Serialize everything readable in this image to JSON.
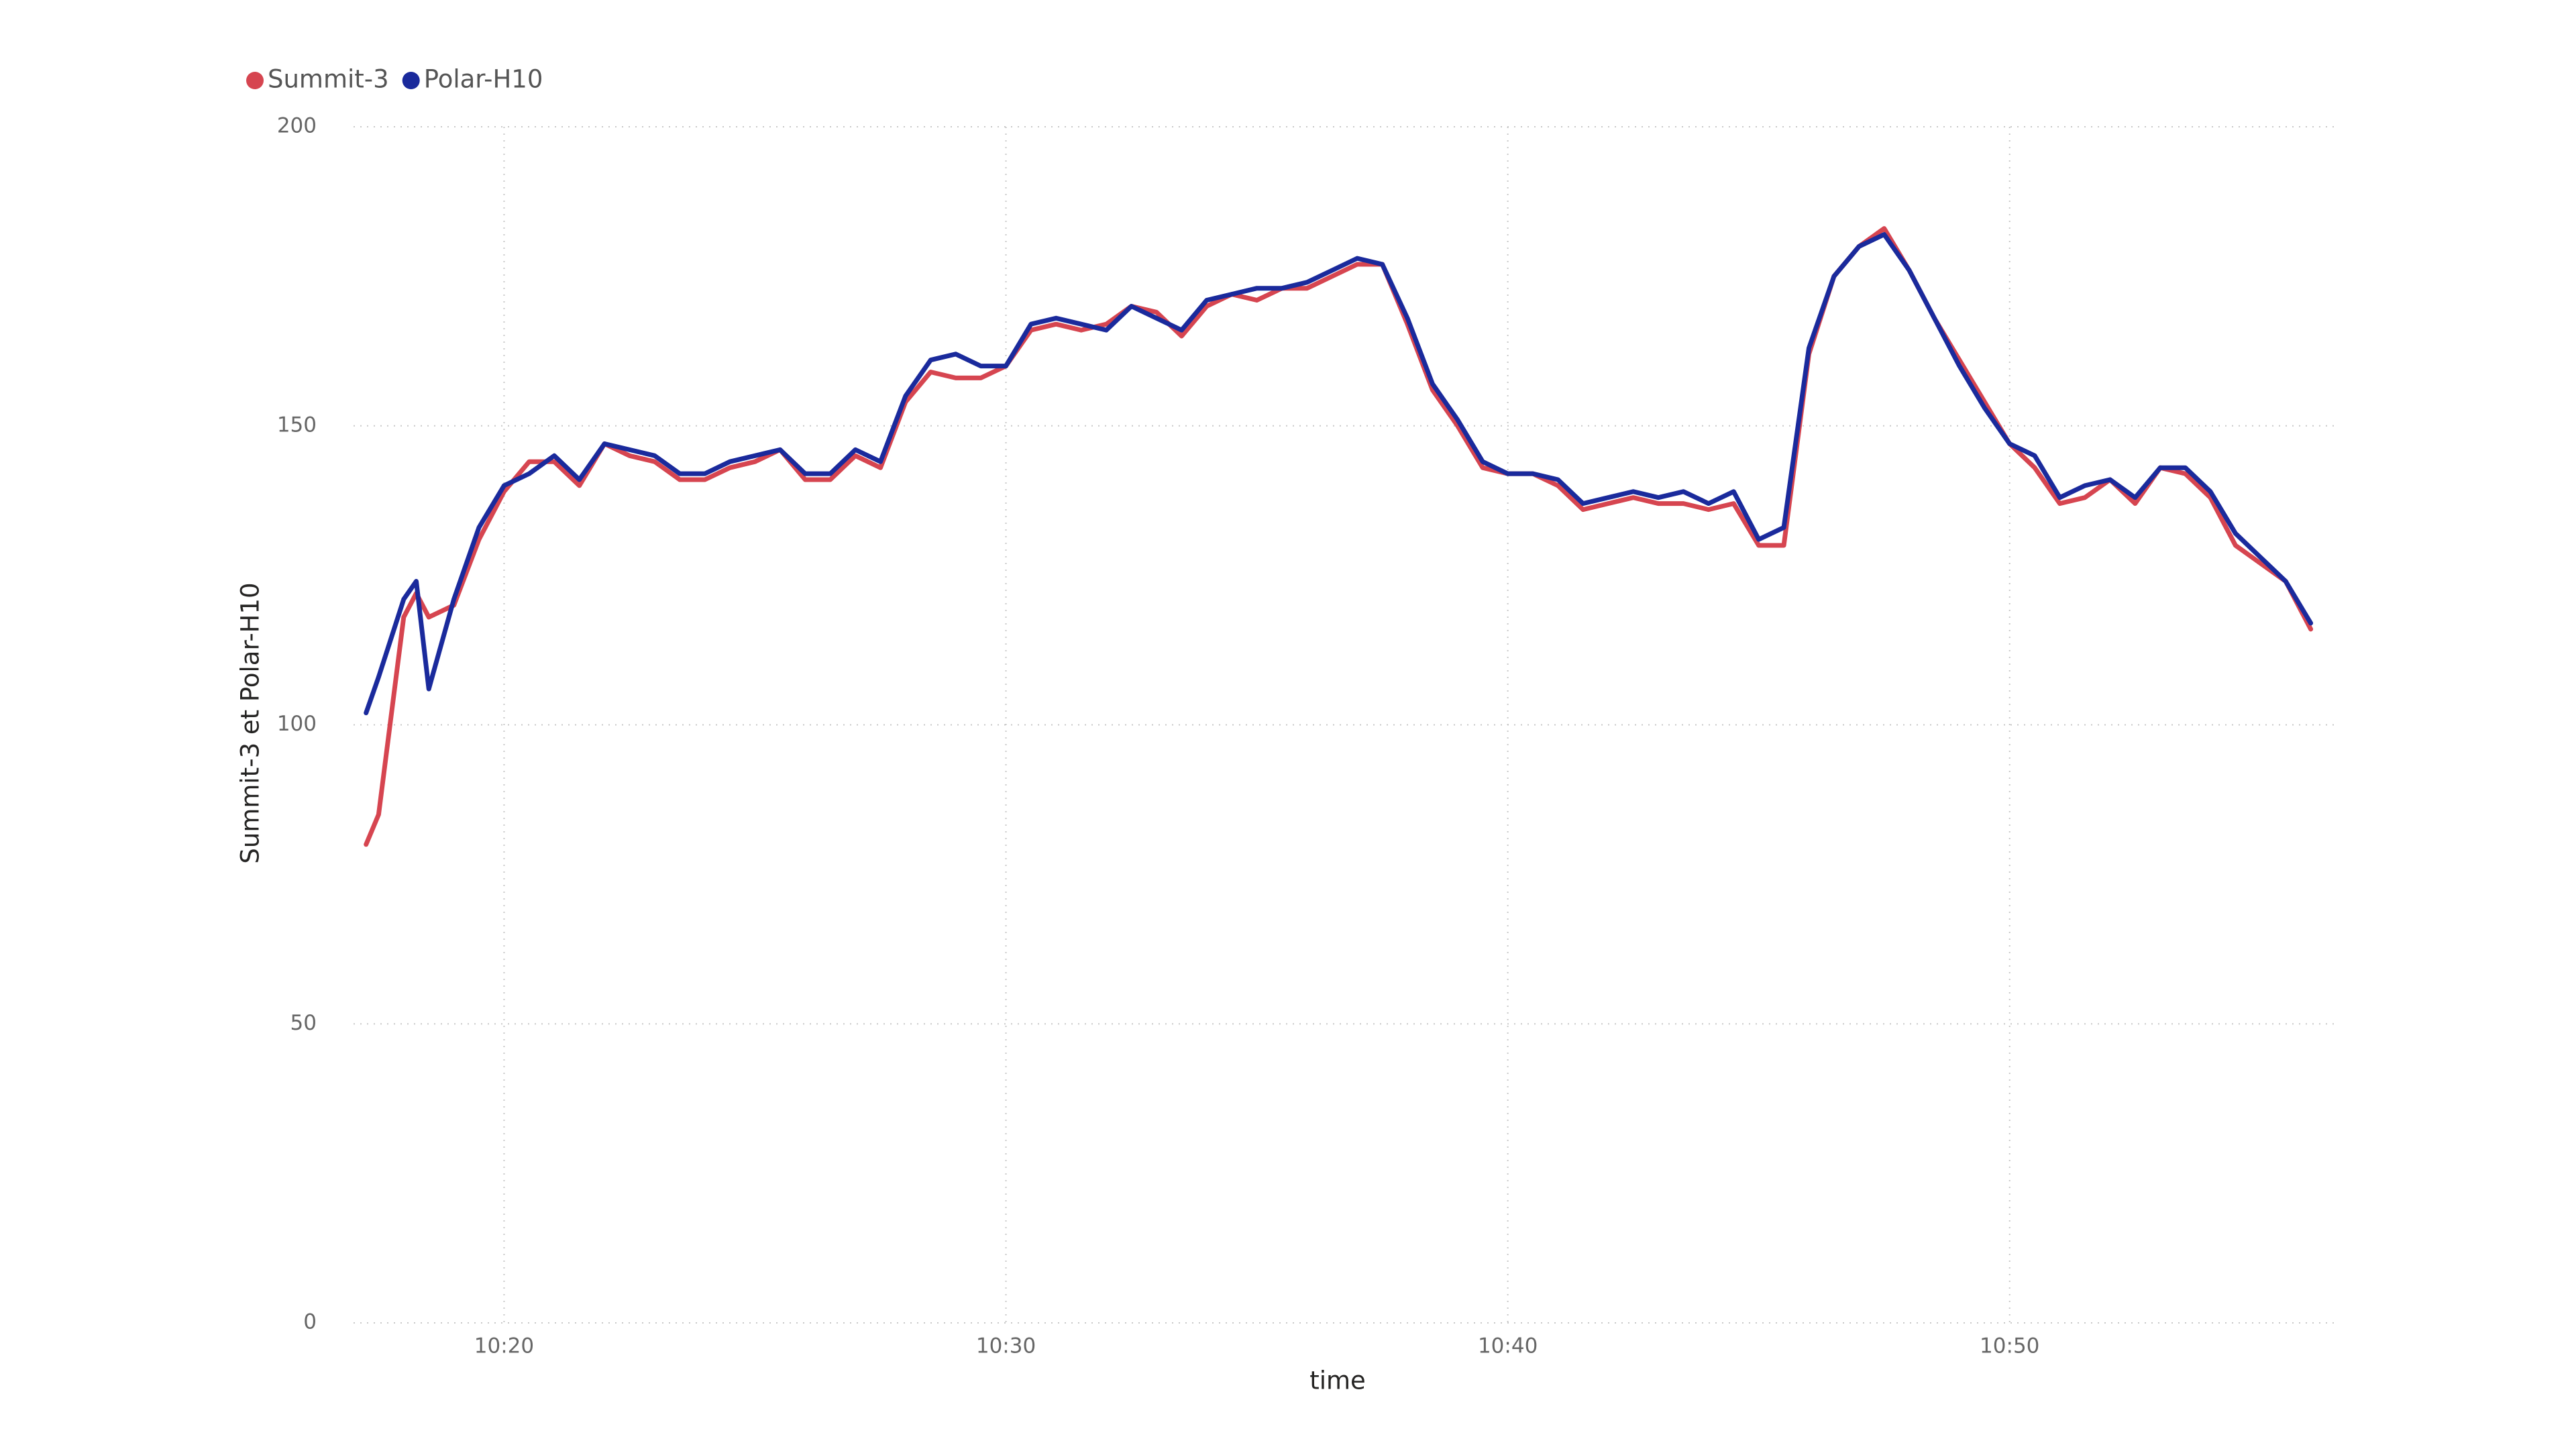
{
  "chart_data": {
    "type": "line",
    "x_label": "time",
    "y_label": "Summit-3 et Polar-H10",
    "x": [
      "10:17:15",
      "10:17:30",
      "10:18:00",
      "10:18:15",
      "10:18:30",
      "10:19:00",
      "10:19:30",
      "10:20:00",
      "10:20:30",
      "10:21:00",
      "10:21:30",
      "10:22:00",
      "10:22:30",
      "10:23:00",
      "10:23:30",
      "10:24:00",
      "10:24:30",
      "10:25:00",
      "10:25:30",
      "10:26:00",
      "10:26:30",
      "10:27:00",
      "10:27:30",
      "10:28:00",
      "10:28:30",
      "10:29:00",
      "10:29:30",
      "10:30:00",
      "10:30:30",
      "10:31:00",
      "10:31:30",
      "10:32:00",
      "10:32:30",
      "10:33:00",
      "10:33:30",
      "10:34:00",
      "10:34:30",
      "10:35:00",
      "10:35:30",
      "10:36:00",
      "10:36:30",
      "10:37:00",
      "10:37:30",
      "10:38:00",
      "10:38:30",
      "10:39:00",
      "10:39:30",
      "10:40:00",
      "10:40:30",
      "10:41:00",
      "10:41:30",
      "10:42:00",
      "10:42:30",
      "10:43:00",
      "10:43:30",
      "10:44:00",
      "10:44:30",
      "10:45:00",
      "10:45:30",
      "10:46:00",
      "10:46:30",
      "10:47:00",
      "10:47:30",
      "10:48:00",
      "10:48:30",
      "10:49:00",
      "10:49:30",
      "10:50:00",
      "10:50:30",
      "10:51:00",
      "10:51:30",
      "10:52:00",
      "10:52:30",
      "10:53:00",
      "10:53:30",
      "10:54:00",
      "10:54:30",
      "10:55:00",
      "10:55:30",
      "10:56:00"
    ],
    "series": [
      {
        "name": "Summit-3",
        "color": "#d64550",
        "values": [
          80,
          85,
          118,
          122,
          118,
          120,
          131,
          139,
          144,
          144,
          140,
          147,
          145,
          144,
          141,
          141,
          143,
          144,
          146,
          141,
          141,
          145,
          143,
          154,
          159,
          158,
          158,
          160,
          166,
          167,
          166,
          167,
          170,
          169,
          165,
          170,
          172,
          171,
          173,
          173,
          175,
          177,
          177,
          167,
          156,
          150,
          143,
          142,
          142,
          140,
          136,
          137,
          138,
          137,
          137,
          136,
          137,
          130,
          130,
          162,
          175,
          180,
          183,
          176,
          168,
          161,
          154,
          147,
          143,
          137,
          138,
          141,
          137,
          143,
          142,
          138,
          130,
          127,
          124,
          116
        ]
      },
      {
        "name": "Polar-H10",
        "color": "#1a2a9c",
        "values": [
          102,
          108,
          121,
          124,
          106,
          121,
          133,
          140,
          142,
          145,
          141,
          147,
          146,
          145,
          142,
          142,
          144,
          145,
          146,
          142,
          142,
          146,
          144,
          155,
          161,
          162,
          160,
          160,
          167,
          168,
          167,
          166,
          170,
          168,
          166,
          171,
          172,
          173,
          173,
          174,
          176,
          178,
          177,
          168,
          157,
          151,
          144,
          142,
          142,
          141,
          137,
          138,
          139,
          138,
          139,
          137,
          139,
          131,
          133,
          163,
          175,
          180,
          182,
          176,
          168,
          160,
          153,
          147,
          145,
          138,
          140,
          141,
          138,
          143,
          143,
          139,
          132,
          128,
          124,
          117
        ]
      }
    ],
    "xlim": [
      "10:17:00",
      "10:56:30"
    ],
    "xticks": [
      {
        "value": "10:20:00",
        "label": "10:20"
      },
      {
        "value": "10:30:00",
        "label": "10:30"
      },
      {
        "value": "10:40:00",
        "label": "10:40"
      },
      {
        "value": "10:50:00",
        "label": "10:50"
      }
    ],
    "ylim": [
      0,
      200
    ],
    "yticks": [
      0,
      50,
      100,
      150,
      200
    ],
    "grid": true,
    "legend": "top-left"
  }
}
